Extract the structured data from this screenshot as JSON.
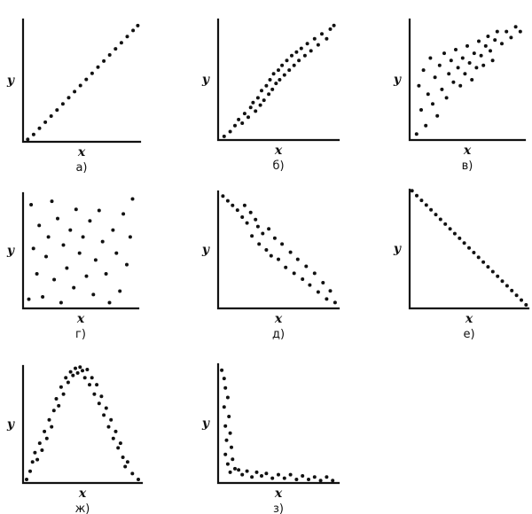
{
  "chart_data": [
    {
      "type": "scatter",
      "caption": "а)",
      "xlabel": "x",
      "ylabel": "y",
      "points": [
        [
          0.04,
          0.02
        ],
        [
          0.09,
          0.06
        ],
        [
          0.14,
          0.11
        ],
        [
          0.19,
          0.16
        ],
        [
          0.24,
          0.21
        ],
        [
          0.29,
          0.26
        ],
        [
          0.34,
          0.31
        ],
        [
          0.39,
          0.36
        ],
        [
          0.44,
          0.41
        ],
        [
          0.49,
          0.46
        ],
        [
          0.54,
          0.51
        ],
        [
          0.59,
          0.56
        ],
        [
          0.64,
          0.61
        ],
        [
          0.69,
          0.66
        ],
        [
          0.74,
          0.71
        ],
        [
          0.79,
          0.76
        ],
        [
          0.84,
          0.81
        ],
        [
          0.89,
          0.86
        ],
        [
          0.94,
          0.91
        ],
        [
          0.98,
          0.95
        ]
      ]
    },
    {
      "type": "scatter",
      "caption": "б)",
      "xlabel": "x",
      "ylabel": "y",
      "points": [
        [
          0.05,
          0.03
        ],
        [
          0.1,
          0.07
        ],
        [
          0.14,
          0.12
        ],
        [
          0.17,
          0.17
        ],
        [
          0.2,
          0.14
        ],
        [
          0.22,
          0.22
        ],
        [
          0.25,
          0.19
        ],
        [
          0.27,
          0.27
        ],
        [
          0.29,
          0.31
        ],
        [
          0.31,
          0.24
        ],
        [
          0.33,
          0.35
        ],
        [
          0.35,
          0.29
        ],
        [
          0.36,
          0.41
        ],
        [
          0.38,
          0.33
        ],
        [
          0.4,
          0.45
        ],
        [
          0.42,
          0.38
        ],
        [
          0.43,
          0.5
        ],
        [
          0.45,
          0.42
        ],
        [
          0.46,
          0.55
        ],
        [
          0.48,
          0.47
        ],
        [
          0.5,
          0.58
        ],
        [
          0.51,
          0.5
        ],
        [
          0.53,
          0.62
        ],
        [
          0.55,
          0.54
        ],
        [
          0.57,
          0.66
        ],
        [
          0.59,
          0.58
        ],
        [
          0.61,
          0.7
        ],
        [
          0.63,
          0.62
        ],
        [
          0.65,
          0.73
        ],
        [
          0.67,
          0.66
        ],
        [
          0.69,
          0.76
        ],
        [
          0.72,
          0.7
        ],
        [
          0.74,
          0.8
        ],
        [
          0.77,
          0.74
        ],
        [
          0.8,
          0.84
        ],
        [
          0.83,
          0.79
        ],
        [
          0.86,
          0.88
        ],
        [
          0.9,
          0.84
        ],
        [
          0.93,
          0.92
        ],
        [
          0.96,
          0.95
        ]
      ]
    },
    {
      "type": "scatter",
      "caption": "в)",
      "xlabel": "x",
      "ylabel": "y",
      "points": [
        [
          0.06,
          0.05
        ],
        [
          0.08,
          0.45
        ],
        [
          0.1,
          0.25
        ],
        [
          0.12,
          0.58
        ],
        [
          0.14,
          0.12
        ],
        [
          0.16,
          0.38
        ],
        [
          0.18,
          0.68
        ],
        [
          0.2,
          0.3
        ],
        [
          0.22,
          0.52
        ],
        [
          0.24,
          0.2
        ],
        [
          0.26,
          0.62
        ],
        [
          0.28,
          0.42
        ],
        [
          0.3,
          0.72
        ],
        [
          0.32,
          0.35
        ],
        [
          0.34,
          0.55
        ],
        [
          0.36,
          0.66
        ],
        [
          0.38,
          0.48
        ],
        [
          0.4,
          0.75
        ],
        [
          0.42,
          0.6
        ],
        [
          0.44,
          0.45
        ],
        [
          0.46,
          0.68
        ],
        [
          0.48,
          0.55
        ],
        [
          0.5,
          0.78
        ],
        [
          0.52,
          0.64
        ],
        [
          0.54,
          0.5
        ],
        [
          0.56,
          0.72
        ],
        [
          0.58,
          0.6
        ],
        [
          0.6,
          0.82
        ],
        [
          0.62,
          0.7
        ],
        [
          0.64,
          0.62
        ],
        [
          0.66,
          0.78
        ],
        [
          0.68,
          0.86
        ],
        [
          0.7,
          0.74
        ],
        [
          0.72,
          0.66
        ],
        [
          0.74,
          0.83
        ],
        [
          0.76,
          0.9
        ],
        [
          0.8,
          0.8
        ],
        [
          0.84,
          0.9
        ],
        [
          0.88,
          0.85
        ],
        [
          0.92,
          0.94
        ],
        [
          0.96,
          0.9
        ]
      ]
    },
    {
      "type": "scatter",
      "caption": "г)",
      "xlabel": "x",
      "ylabel": "y",
      "points": [
        [
          0.05,
          0.08
        ],
        [
          0.07,
          0.9
        ],
        [
          0.09,
          0.52
        ],
        [
          0.12,
          0.3
        ],
        [
          0.14,
          0.72
        ],
        [
          0.17,
          0.1
        ],
        [
          0.2,
          0.45
        ],
        [
          0.22,
          0.62
        ],
        [
          0.25,
          0.93
        ],
        [
          0.27,
          0.25
        ],
        [
          0.3,
          0.78
        ],
        [
          0.33,
          0.05
        ],
        [
          0.35,
          0.55
        ],
        [
          0.38,
          0.35
        ],
        [
          0.41,
          0.68
        ],
        [
          0.44,
          0.18
        ],
        [
          0.46,
          0.86
        ],
        [
          0.49,
          0.48
        ],
        [
          0.52,
          0.62
        ],
        [
          0.55,
          0.28
        ],
        [
          0.58,
          0.76
        ],
        [
          0.61,
          0.12
        ],
        [
          0.63,
          0.42
        ],
        [
          0.66,
          0.85
        ],
        [
          0.69,
          0.58
        ],
        [
          0.72,
          0.3
        ],
        [
          0.75,
          0.05
        ],
        [
          0.78,
          0.68
        ],
        [
          0.81,
          0.48
        ],
        [
          0.84,
          0.15
        ],
        [
          0.87,
          0.82
        ],
        [
          0.9,
          0.38
        ],
        [
          0.93,
          0.62
        ],
        [
          0.95,
          0.95
        ]
      ]
    },
    {
      "type": "scatter",
      "caption": "д)",
      "xlabel": "x",
      "ylabel": "y",
      "points": [
        [
          0.04,
          0.96
        ],
        [
          0.08,
          0.92
        ],
        [
          0.12,
          0.88
        ],
        [
          0.16,
          0.84
        ],
        [
          0.2,
          0.78
        ],
        [
          0.22,
          0.88
        ],
        [
          0.24,
          0.73
        ],
        [
          0.27,
          0.82
        ],
        [
          0.28,
          0.62
        ],
        [
          0.31,
          0.76
        ],
        [
          0.33,
          0.7
        ],
        [
          0.34,
          0.55
        ],
        [
          0.37,
          0.64
        ],
        [
          0.4,
          0.5
        ],
        [
          0.42,
          0.68
        ],
        [
          0.44,
          0.45
        ],
        [
          0.47,
          0.6
        ],
        [
          0.5,
          0.42
        ],
        [
          0.53,
          0.55
        ],
        [
          0.56,
          0.35
        ],
        [
          0.6,
          0.48
        ],
        [
          0.63,
          0.3
        ],
        [
          0.66,
          0.42
        ],
        [
          0.7,
          0.25
        ],
        [
          0.73,
          0.36
        ],
        [
          0.76,
          0.2
        ],
        [
          0.8,
          0.3
        ],
        [
          0.83,
          0.14
        ],
        [
          0.87,
          0.22
        ],
        [
          0.9,
          0.08
        ],
        [
          0.93,
          0.15
        ],
        [
          0.97,
          0.05
        ]
      ]
    },
    {
      "type": "scatter",
      "caption": "е)",
      "xlabel": "x",
      "ylabel": "y",
      "points": [
        [
          0.02,
          0.99
        ],
        [
          0.06,
          0.95
        ],
        [
          0.1,
          0.91
        ],
        [
          0.14,
          0.87
        ],
        [
          0.18,
          0.83
        ],
        [
          0.22,
          0.79
        ],
        [
          0.26,
          0.75
        ],
        [
          0.3,
          0.71
        ],
        [
          0.34,
          0.67
        ],
        [
          0.38,
          0.63
        ],
        [
          0.42,
          0.59
        ],
        [
          0.46,
          0.55
        ],
        [
          0.5,
          0.51
        ],
        [
          0.54,
          0.47
        ],
        [
          0.58,
          0.43
        ],
        [
          0.62,
          0.39
        ],
        [
          0.66,
          0.35
        ],
        [
          0.7,
          0.31
        ],
        [
          0.74,
          0.27
        ],
        [
          0.78,
          0.23
        ],
        [
          0.82,
          0.19
        ],
        [
          0.86,
          0.15
        ],
        [
          0.9,
          0.11
        ],
        [
          0.94,
          0.07
        ],
        [
          0.98,
          0.03
        ]
      ]
    },
    {
      "type": "scatter",
      "caption": "ж)",
      "xlabel": "x",
      "ylabel": "y",
      "points": [
        [
          0.03,
          0.03
        ],
        [
          0.06,
          0.1
        ],
        [
          0.08,
          0.18
        ],
        [
          0.1,
          0.26
        ],
        [
          0.12,
          0.2
        ],
        [
          0.14,
          0.34
        ],
        [
          0.16,
          0.28
        ],
        [
          0.18,
          0.44
        ],
        [
          0.2,
          0.38
        ],
        [
          0.22,
          0.54
        ],
        [
          0.24,
          0.48
        ],
        [
          0.26,
          0.62
        ],
        [
          0.28,
          0.72
        ],
        [
          0.3,
          0.66
        ],
        [
          0.32,
          0.82
        ],
        [
          0.34,
          0.76
        ],
        [
          0.36,
          0.9
        ],
        [
          0.38,
          0.86
        ],
        [
          0.4,
          0.95
        ],
        [
          0.42,
          0.92
        ],
        [
          0.44,
          0.98
        ],
        [
          0.46,
          0.94
        ],
        [
          0.48,
          0.99
        ],
        [
          0.5,
          0.96
        ],
        [
          0.52,
          0.9
        ],
        [
          0.54,
          0.97
        ],
        [
          0.56,
          0.84
        ],
        [
          0.58,
          0.9
        ],
        [
          0.6,
          0.76
        ],
        [
          0.62,
          0.84
        ],
        [
          0.64,
          0.68
        ],
        [
          0.66,
          0.74
        ],
        [
          0.68,
          0.58
        ],
        [
          0.7,
          0.64
        ],
        [
          0.72,
          0.48
        ],
        [
          0.74,
          0.54
        ],
        [
          0.76,
          0.38
        ],
        [
          0.78,
          0.44
        ],
        [
          0.8,
          0.3
        ],
        [
          0.82,
          0.34
        ],
        [
          0.84,
          0.22
        ],
        [
          0.86,
          0.14
        ],
        [
          0.88,
          0.18
        ],
        [
          0.92,
          0.08
        ],
        [
          0.97,
          0.03
        ]
      ]
    },
    {
      "type": "scatter",
      "caption": "з)",
      "xlabel": "x",
      "ylabel": "y",
      "points": [
        [
          0.03,
          0.95
        ],
        [
          0.05,
          0.88
        ],
        [
          0.06,
          0.8
        ],
        [
          0.08,
          0.72
        ],
        [
          0.05,
          0.64
        ],
        [
          0.09,
          0.56
        ],
        [
          0.06,
          0.48
        ],
        [
          0.1,
          0.42
        ],
        [
          0.07,
          0.36
        ],
        [
          0.11,
          0.3
        ],
        [
          0.06,
          0.24
        ],
        [
          0.12,
          0.2
        ],
        [
          0.08,
          0.16
        ],
        [
          0.14,
          0.12
        ],
        [
          0.1,
          0.09
        ],
        [
          0.17,
          0.11
        ],
        [
          0.2,
          0.07
        ],
        [
          0.24,
          0.1
        ],
        [
          0.28,
          0.05
        ],
        [
          0.32,
          0.09
        ],
        [
          0.36,
          0.06
        ],
        [
          0.4,
          0.08
        ],
        [
          0.45,
          0.04
        ],
        [
          0.5,
          0.07
        ],
        [
          0.55,
          0.04
        ],
        [
          0.6,
          0.07
        ],
        [
          0.65,
          0.03
        ],
        [
          0.7,
          0.06
        ],
        [
          0.75,
          0.03
        ],
        [
          0.8,
          0.05
        ],
        [
          0.85,
          0.02
        ],
        [
          0.9,
          0.05
        ],
        [
          0.95,
          0.02
        ]
      ]
    }
  ]
}
